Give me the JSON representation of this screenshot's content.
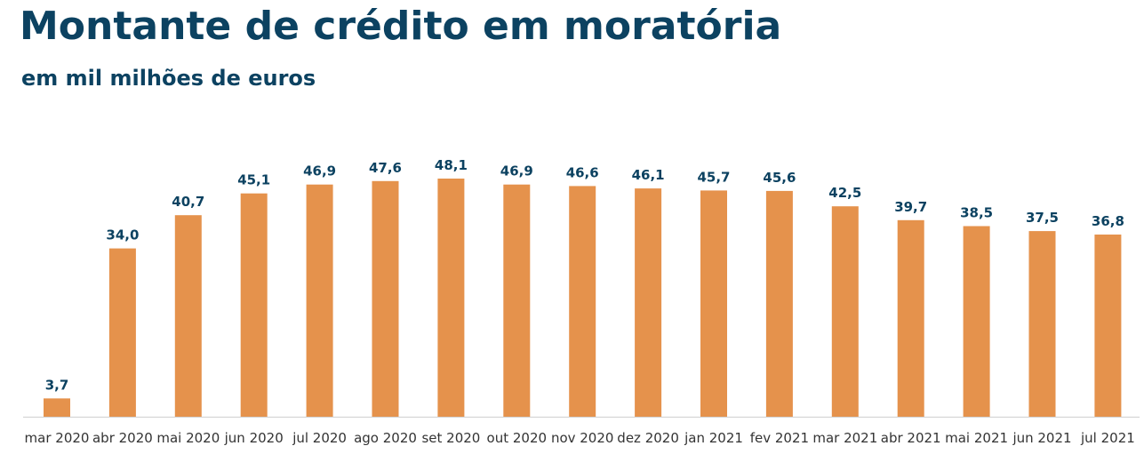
{
  "title": "Montante de crédito em moratória",
  "subtitle": "em mil milhões de euros",
  "colors": {
    "bar": "#e5924c",
    "text": "#0c4261",
    "axis": "#d0d0d0"
  },
  "chart_data": {
    "type": "bar",
    "title": "Montante de crédito em moratória",
    "subtitle": "em mil milhões de euros",
    "categories": [
      "mar 2020",
      "abr 2020",
      "mai 2020",
      "jun 2020",
      "jul 2020",
      "ago 2020",
      "set 2020",
      "out 2020",
      "nov 2020",
      "dez 2020",
      "jan 2021",
      "fev 2021",
      "mar 2021",
      "abr 2021",
      "mai 2021",
      "jun 2021",
      "jul 2021"
    ],
    "values": [
      3.7,
      34.0,
      40.7,
      45.1,
      46.9,
      47.6,
      48.1,
      46.9,
      46.6,
      46.1,
      45.7,
      45.6,
      42.5,
      39.7,
      38.5,
      37.5,
      36.8
    ],
    "value_labels": [
      "3,7",
      "34,0",
      "40,7",
      "45,1",
      "46,9",
      "47,6",
      "48,1",
      "46,9",
      "46,6",
      "46,1",
      "45,7",
      "45,6",
      "42,5",
      "39,7",
      "38,5",
      "37,5",
      "36,8"
    ],
    "ylim": [
      0,
      48.1
    ],
    "grid": false,
    "legend": "none"
  }
}
